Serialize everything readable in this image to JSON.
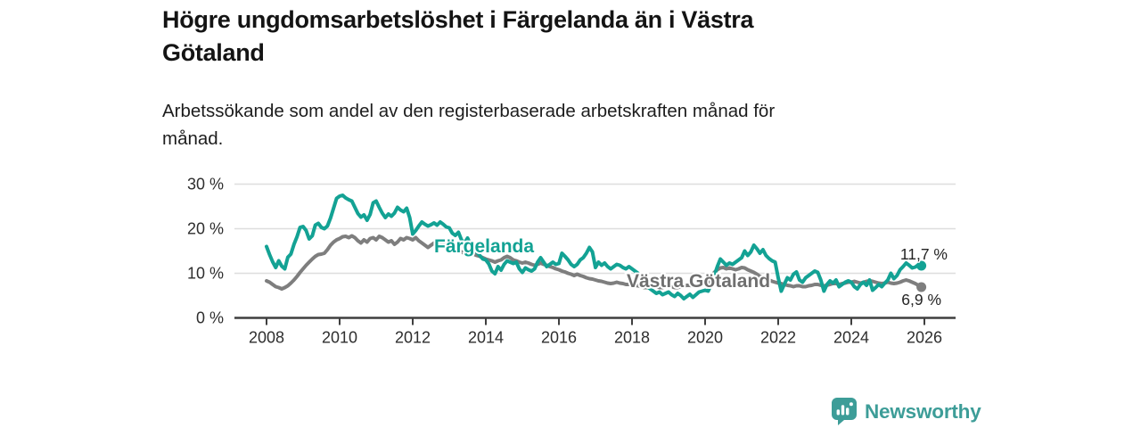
{
  "header": {
    "title_lines": [
      "Högre ungdomsarbetslöshet i Färgelanda än i Västra",
      "Götaland"
    ],
    "subtitle_lines": [
      "Arbetssökande som andel av den registerbaserade arbetskraften månad för",
      "månad."
    ]
  },
  "chart_data": {
    "type": "line",
    "title": "Högre ungdomsarbetslöshet i Färgelanda än i Västra Götaland",
    "subtitle": "Arbetssökande som andel av den registerbaserade arbetskraften månad för månad.",
    "x_unit": "year",
    "frequency": "monthly",
    "start": "2008-01",
    "end": "2025-12",
    "grid": "horizontal",
    "xlim": [
      2007.1,
      2026.9
    ],
    "ylim": [
      0,
      30
    ],
    "x_ticks": [
      2008,
      2010,
      2012,
      2014,
      2016,
      2018,
      2020,
      2022,
      2024,
      2026
    ],
    "y_ticks": [
      {
        "value": 30,
        "label": "30 %"
      },
      {
        "value": 20,
        "label": "20 %"
      },
      {
        "value": 10,
        "label": "10 %"
      },
      {
        "value": 0,
        "label": "0 %"
      }
    ],
    "series": [
      {
        "name": "Västra Götaland",
        "color": "#7e7e7e",
        "label_color": "#6f6f6f",
        "end_label": "6,9 %",
        "latest_value": 6.9,
        "values": [
          8.3,
          8.0,
          7.5,
          7.0,
          6.8,
          6.5,
          6.8,
          7.2,
          7.8,
          8.5,
          9.3,
          10.2,
          11.0,
          11.8,
          12.5,
          13.2,
          13.8,
          14.2,
          14.3,
          14.5,
          15.3,
          16.3,
          17.0,
          17.5,
          17.8,
          18.2,
          18.3,
          18.0,
          18.4,
          18.0,
          17.3,
          16.8,
          17.5,
          17.0,
          17.8,
          18.0,
          17.5,
          18.3,
          18.0,
          17.5,
          17.0,
          17.3,
          16.5,
          17.0,
          17.8,
          17.5,
          18.0,
          17.8,
          17.5,
          18.0,
          17.3,
          16.8,
          16.3,
          15.8,
          16.3,
          16.8,
          16.5,
          17.0,
          16.8,
          16.5,
          16.3,
          16.0,
          15.5,
          15.0,
          14.8,
          14.5,
          14.3,
          14.5,
          14.3,
          14.0,
          13.8,
          13.5,
          13.2,
          13.0,
          12.8,
          12.5,
          12.8,
          13.0,
          13.5,
          13.8,
          13.5,
          13.0,
          12.8,
          12.5,
          12.3,
          12.5,
          12.3,
          12.0,
          11.8,
          12.0,
          12.3,
          12.0,
          11.8,
          11.5,
          11.3,
          11.0,
          10.8,
          10.5,
          10.3,
          10.0,
          9.8,
          9.5,
          9.8,
          9.5,
          9.3,
          9.0,
          8.8,
          8.7,
          8.5,
          8.3,
          8.2,
          8.0,
          7.8,
          7.7,
          7.8,
          8.0,
          7.8,
          7.7,
          7.5,
          7.5,
          7.5,
          7.3,
          7.2,
          7.0,
          6.8,
          6.8,
          7.0,
          7.2,
          7.0,
          6.8,
          6.8,
          7.0,
          7.0,
          7.0,
          6.8,
          6.8,
          7.0,
          7.2,
          7.3,
          7.3,
          7.2,
          7.3,
          7.5,
          7.7,
          7.8,
          8.0,
          9.0,
          10.2,
          10.8,
          11.2,
          11.3,
          11.0,
          11.2,
          11.0,
          10.8,
          11.0,
          11.3,
          11.2,
          10.8,
          10.5,
          10.2,
          9.8,
          9.3,
          9.0,
          8.7,
          8.5,
          8.2,
          8.0,
          7.8,
          7.7,
          7.5,
          7.3,
          7.2,
          7.0,
          7.2,
          7.2,
          7.0,
          7.0,
          7.2,
          7.3,
          7.5,
          7.5,
          7.3,
          7.2,
          7.3,
          7.5,
          7.7,
          7.7,
          7.5,
          7.7,
          7.8,
          8.0,
          8.0,
          8.2,
          8.0,
          7.8,
          8.0,
          8.2,
          8.3,
          8.2,
          8.0,
          7.8,
          7.7,
          7.8,
          8.0,
          7.8,
          7.7,
          7.8,
          8.0,
          8.3,
          8.5,
          8.3,
          8.0,
          7.7,
          7.3,
          6.9
        ]
      },
      {
        "name": "Färgelanda",
        "color": "#13a294",
        "label_color": "#13a294",
        "end_label": "11,7 %",
        "latest_value": 11.7,
        "values": [
          16.0,
          14.2,
          12.6,
          11.3,
          12.8,
          11.6,
          11.0,
          13.6,
          14.3,
          16.5,
          18.2,
          20.3,
          20.5,
          19.6,
          17.7,
          18.4,
          20.8,
          21.2,
          20.3,
          20.0,
          20.6,
          22.4,
          24.6,
          26.8,
          27.3,
          27.5,
          26.9,
          26.5,
          26.2,
          24.8,
          23.4,
          22.6,
          23.1,
          21.9,
          23.2,
          25.8,
          26.2,
          24.8,
          23.5,
          22.5,
          23.3,
          22.8,
          23.5,
          24.8,
          24.2,
          23.8,
          24.6,
          22.5,
          18.8,
          19.6,
          20.6,
          21.5,
          21.0,
          20.6,
          20.9,
          21.3,
          20.8,
          21.5,
          21.0,
          20.4,
          20.2,
          19.0,
          18.5,
          19.2,
          17.5,
          16.8,
          17.9,
          16.4,
          15.5,
          14.8,
          14.0,
          13.2,
          13.0,
          12.1,
          10.5,
          9.9,
          11.5,
          10.7,
          12.0,
          12.8,
          12.5,
          12.2,
          12.5,
          11.0,
          10.2,
          11.2,
          10.8,
          10.5,
          11.0,
          12.5,
          13.5,
          12.5,
          11.5,
          12.0,
          12.5,
          12.0,
          12.2,
          14.5,
          13.8,
          13.0,
          12.0,
          11.5,
          12.0,
          13.0,
          13.5,
          14.5,
          15.8,
          14.8,
          11.3,
          12.5,
          11.8,
          12.3,
          11.5,
          11.0,
          11.5,
          12.0,
          11.8,
          11.3,
          11.0,
          11.5,
          11.0,
          10.5,
          10.0,
          9.0,
          8.0,
          7.0,
          6.5,
          6.0,
          5.5,
          5.8,
          5.2,
          5.5,
          5.8,
          5.2,
          4.8,
          5.5,
          5.0,
          4.3,
          4.8,
          5.3,
          4.6,
          5.2,
          5.8,
          6.0,
          6.2,
          6.0,
          7.5,
          9.5,
          11.5,
          13.2,
          12.5,
          11.8,
          12.3,
          12.0,
          12.5,
          13.0,
          13.5,
          15.0,
          14.0,
          14.8,
          16.3,
          15.5,
          14.5,
          15.3,
          14.0,
          13.3,
          12.8,
          12.5,
          9.0,
          6.0,
          7.5,
          9.0,
          8.5,
          9.8,
          10.3,
          8.5,
          8.0,
          9.0,
          9.5,
          10.0,
          10.5,
          10.2,
          8.5,
          6.0,
          7.5,
          8.3,
          7.8,
          8.5,
          7.0,
          7.5,
          8.0,
          8.3,
          8.0,
          7.0,
          6.5,
          7.5,
          8.0,
          7.3,
          8.5,
          6.2,
          6.8,
          7.5,
          7.0,
          7.8,
          8.5,
          10.0,
          8.8,
          9.5,
          10.8,
          11.5,
          12.3,
          11.8,
          11.2,
          11.4,
          11.9,
          11.7
        ]
      }
    ]
  },
  "branding": {
    "logo_text": "Newsworthy",
    "logo_color": "#3d9d98",
    "logo_icon": "bar-chart-speech-bubble-icon"
  }
}
